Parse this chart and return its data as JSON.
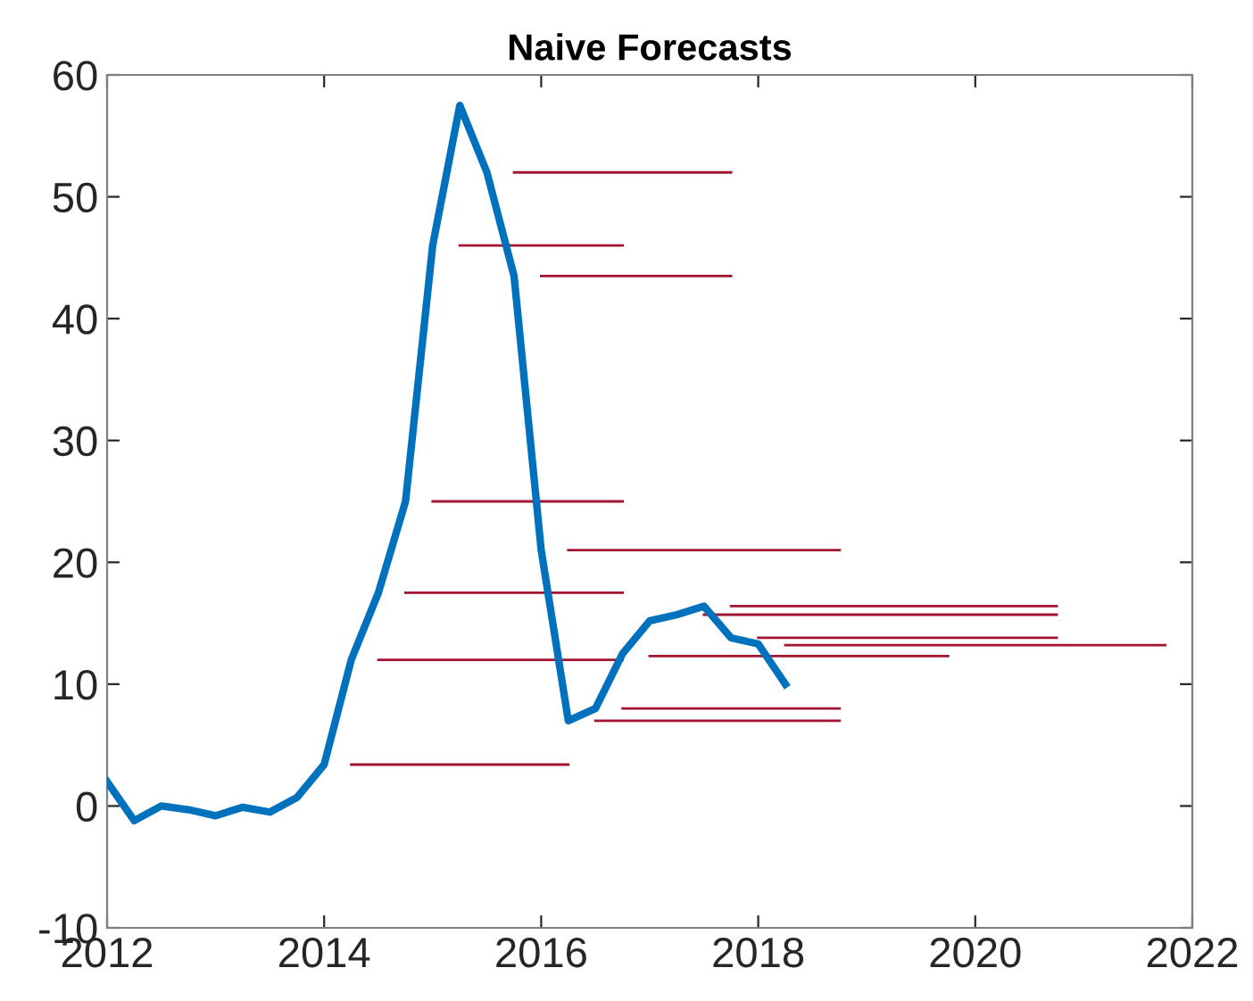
{
  "chart_data": {
    "type": "line",
    "title": "Naive Forecasts",
    "xlim": [
      2012,
      2022
    ],
    "xticks": [
      2012,
      2014,
      2016,
      2018,
      2020,
      2022
    ],
    "ylim": [
      -10,
      60
    ],
    "yticks": [
      -10,
      0,
      10,
      20,
      30,
      40,
      50,
      60
    ],
    "grid": false,
    "legend": false,
    "marker": "none",
    "line_style": "solid",
    "series": [
      {
        "color": "#0072bd",
        "x": [
          2012,
          2012.25,
          2012.5,
          2012.75,
          2013,
          2013.25,
          2013.5,
          2013.75,
          2014,
          2014.25,
          2014.5,
          2014.75,
          2015,
          2015.25,
          2015.5,
          2015.75,
          2016,
          2016.25,
          2016.5,
          2016.75,
          2017,
          2017.25,
          2017.5,
          2017.75,
          2018,
          2018.25
        ],
        "values": [
          2,
          -1.2,
          0,
          -0.3,
          -0.8,
          -0.1,
          -0.5,
          0.7,
          3.4,
          12,
          17.5,
          25,
          46,
          57.5,
          52,
          43.5,
          21,
          7,
          8,
          12.5,
          15.2,
          15.7,
          16.4,
          13.8,
          13.3,
          10
        ]
      },
      {
        "color": "#a2142f",
        "x": [
          2014.25,
          2016.25
        ],
        "values": [
          3.4,
          3.4
        ]
      },
      {
        "color": "#a2142f",
        "x": [
          2014.5,
          2016.75
        ],
        "values": [
          12,
          12
        ]
      },
      {
        "color": "#a2142f",
        "x": [
          2014.75,
          2016.75
        ],
        "values": [
          17.5,
          17.5
        ]
      },
      {
        "color": "#a2142f",
        "x": [
          2015,
          2016.75
        ],
        "values": [
          25,
          25
        ]
      },
      {
        "color": "#a2142f",
        "x": [
          2015.25,
          2016.75
        ],
        "values": [
          46,
          46
        ]
      },
      {
        "color": "#a2142f",
        "x": [
          2015.75,
          2017.75
        ],
        "values": [
          52,
          52
        ]
      },
      {
        "color": "#a2142f",
        "x": [
          2016,
          2017.75
        ],
        "values": [
          43.5,
          43.5
        ]
      },
      {
        "color": "#a2142f",
        "x": [
          2016.25,
          2018.75
        ],
        "values": [
          21,
          21
        ]
      },
      {
        "color": "#a2142f",
        "x": [
          2016.5,
          2018.75
        ],
        "values": [
          7,
          7
        ]
      },
      {
        "color": "#a2142f",
        "x": [
          2016.75,
          2018.75
        ],
        "values": [
          8,
          8
        ]
      },
      {
        "color": "#a2142f",
        "x": [
          2017,
          2019.75
        ],
        "values": [
          12.3,
          12.3
        ]
      },
      {
        "color": "#a2142f",
        "x": [
          2017.5,
          2020.75
        ],
        "values": [
          15.7,
          15.7
        ]
      },
      {
        "color": "#a2142f",
        "x": [
          2017.75,
          2020.75
        ],
        "values": [
          16.4,
          16.4
        ]
      },
      {
        "color": "#a2142f",
        "x": [
          2018,
          2020.75
        ],
        "values": [
          13.8,
          13.8
        ]
      },
      {
        "color": "#a2142f",
        "x": [
          2018.25,
          2021.75
        ],
        "values": [
          13.2,
          13.2
        ]
      }
    ]
  }
}
